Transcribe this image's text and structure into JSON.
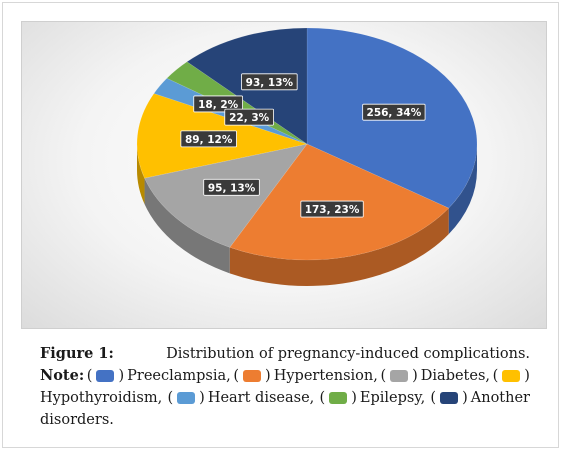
{
  "chart_data": {
    "type": "pie",
    "slices": [
      {
        "category": "Preeclampsia",
        "value": 256,
        "percent": 34,
        "label": "256, 34%",
        "color": "#4472C4"
      },
      {
        "category": "Hypertension",
        "value": 173,
        "percent": 23,
        "label": "173, 23%",
        "color": "#ED7D31"
      },
      {
        "category": "Diabetes",
        "value": 95,
        "percent": 13,
        "label": "95, 13%",
        "color": "#A5A5A5"
      },
      {
        "category": "Hypothyroidism",
        "value": 89,
        "percent": 12,
        "label": "89, 12%",
        "color": "#FFC000"
      },
      {
        "category": "Heart disease",
        "value": 18,
        "percent": 2,
        "label": "18, 2%",
        "color": "#5B9BD5"
      },
      {
        "category": "Epilepsy",
        "value": 22,
        "percent": 3,
        "label": "22, 3%",
        "color": "#70AD47"
      },
      {
        "category": "Another disorders",
        "value": 93,
        "percent": 13,
        "label": "93, 13%",
        "color": "#264478"
      }
    ],
    "style": "3d-pie"
  },
  "caption": {
    "figure_label": "Figure 1:",
    "figure_title": "Distribution of pregnancy-induced complications.",
    "note_label": "Note:",
    "legend": [
      {
        "text": "Preeclampsia,",
        "color": "#4472C4"
      },
      {
        "text": "Hypertension,",
        "color": "#ED7D31"
      },
      {
        "text": "Diabetes,",
        "color": "#A5A5A5"
      },
      {
        "text": "Hypothyroidism,",
        "color": "#FFC000"
      },
      {
        "text": "Heart disease,",
        "color": "#5B9BD5"
      },
      {
        "text": "Epilepsy,",
        "color": "#70AD47"
      },
      {
        "text": "Another",
        "color": "#264478"
      }
    ],
    "trailing_text": "disorders."
  }
}
